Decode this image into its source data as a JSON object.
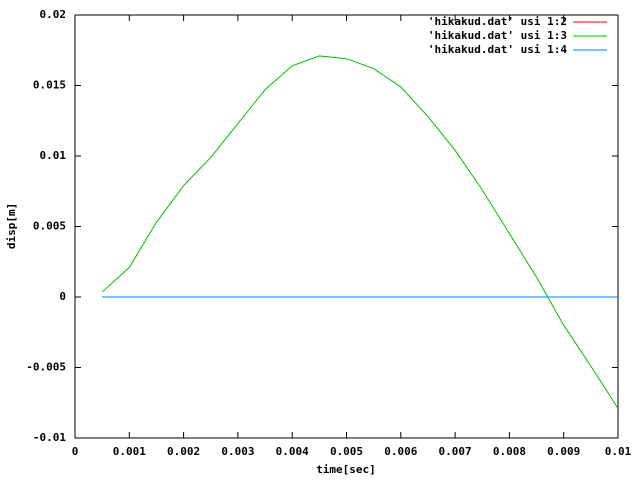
{
  "chart_data": {
    "type": "line",
    "xlabel": "time[sec]",
    "ylabel": "disp[m]",
    "x": [
      0.0005,
      0.001,
      0.0015,
      0.002,
      0.0025,
      0.003,
      0.0035,
      0.004,
      0.0045,
      0.005,
      0.0055,
      0.006,
      0.0065,
      0.007,
      0.0075,
      0.008,
      0.0085,
      0.009,
      0.0095,
      0.01
    ],
    "series": [
      {
        "name": "'hikakud.dat' usi 1:2",
        "color": "#ff0000",
        "values": [
          0,
          0,
          0,
          0,
          0,
          0,
          0,
          0,
          0,
          0,
          0,
          0,
          0,
          0,
          0,
          0,
          0,
          0,
          0,
          0
        ]
      },
      {
        "name": "'hikakud.dat' usi 1:3",
        "color": "#00c000",
        "values": [
          0.00035,
          0.0021,
          0.0053,
          0.0079,
          0.0099,
          0.0123,
          0.0147,
          0.0164,
          0.0171,
          0.0169,
          0.0162,
          0.0149,
          0.0128,
          0.0104,
          0.0076,
          0.0045,
          0.0014,
          -0.002,
          -0.0049,
          -0.0079
        ]
      },
      {
        "name": "'hikakud.dat' usi 1:4",
        "color": "#0080ff",
        "values": [
          0,
          0,
          0,
          0,
          0,
          0,
          0,
          0,
          0,
          0,
          0,
          0,
          0,
          0,
          0,
          0,
          0,
          0,
          0,
          0
        ]
      }
    ],
    "xlim": [
      0,
      0.01
    ],
    "xticks": [
      0,
      0.001,
      0.002,
      0.003,
      0.004,
      0.005,
      0.006,
      0.007,
      0.008,
      0.009,
      0.01
    ],
    "ylim": [
      -0.01,
      0.02
    ],
    "yticks": [
      -0.01,
      -0.005,
      0,
      0.005,
      0.01,
      0.015,
      0.02
    ],
    "legend": "top-right"
  }
}
